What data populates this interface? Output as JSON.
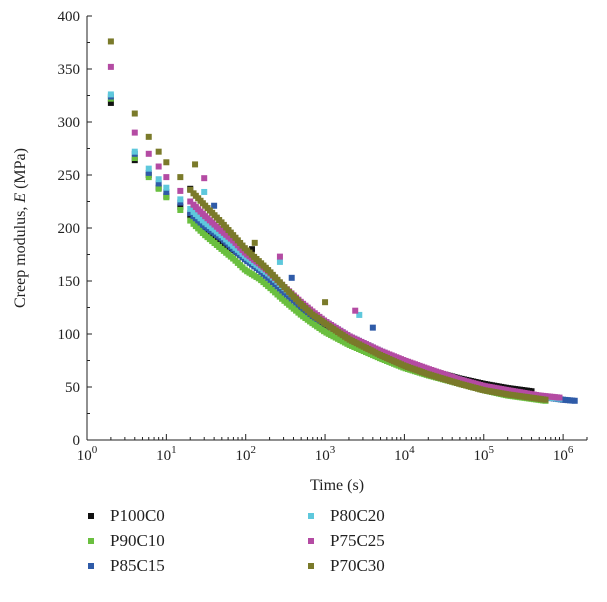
{
  "chart_data": {
    "type": "scatter",
    "xlabel": "Time (s)",
    "ylabel_main": "Creep modulus, ",
    "ylabel_italic": "E",
    "ylabel_unit": " (MPa)",
    "x_scale": "log",
    "xlim": [
      1,
      2000000
    ],
    "ylim": [
      0,
      400
    ],
    "x_ticks": [
      1,
      10,
      100,
      1000,
      10000,
      100000,
      1000000
    ],
    "x_tick_labels": [
      {
        "base": "10",
        "exp": "0"
      },
      {
        "base": "10",
        "exp": "1"
      },
      {
        "base": "10",
        "exp": "2"
      },
      {
        "base": "10",
        "exp": "3"
      },
      {
        "base": "10",
        "exp": "4"
      },
      {
        "base": "10",
        "exp": "5"
      },
      {
        "base": "10",
        "exp": "6"
      }
    ],
    "y_ticks": [
      0,
      50,
      100,
      150,
      200,
      250,
      300,
      350,
      400
    ],
    "grid": false,
    "legend_position": "bottom",
    "series": [
      {
        "name": "P100C0",
        "color": "#111111",
        "x_max": 400000,
        "x": [
          2,
          4,
          6,
          8,
          10,
          15,
          20,
          30,
          50,
          70,
          100,
          150,
          200,
          300,
          500,
          700,
          1000,
          2000,
          5000,
          10000,
          20000,
          50000,
          100000,
          200000,
          400000
        ],
        "y": [
          318,
          264,
          250,
          238,
          230,
          220,
          212,
          200,
          187,
          179,
          171,
          163,
          156,
          142,
          125,
          117,
          109,
          97,
          83,
          73,
          66,
          58,
          53,
          49,
          46
        ],
        "outliers": [
          [
            20,
            237
          ],
          [
            120,
            180
          ]
        ]
      },
      {
        "name": "P90C10",
        "color": "#6abf3f",
        "x_max": 600000,
        "x": [
          2,
          4,
          6,
          8,
          10,
          15,
          20,
          30,
          50,
          70,
          100,
          150,
          200,
          300,
          500,
          700,
          1000,
          2000,
          5000,
          10000,
          20000,
          50000,
          100000,
          200000,
          600000
        ],
        "y": [
          322,
          266,
          248,
          237,
          229,
          217,
          207,
          194,
          180,
          171,
          160,
          152,
          144,
          132,
          118,
          110,
          102,
          90,
          77,
          68,
          61,
          53,
          47,
          42,
          37
        ],
        "outliers": []
      },
      {
        "name": "P85C15",
        "color": "#2f5ba8",
        "x_max": 1400000,
        "x": [
          2,
          4,
          6,
          8,
          10,
          15,
          20,
          30,
          50,
          70,
          100,
          150,
          200,
          300,
          500,
          700,
          1000,
          2000,
          5000,
          10000,
          20000,
          50000,
          100000,
          200000,
          500000,
          1000000,
          1400000
        ],
        "y": [
          324,
          270,
          252,
          242,
          234,
          224,
          214,
          202,
          190,
          180,
          170,
          160,
          152,
          140,
          126,
          117,
          110,
          96,
          82,
          73,
          65,
          56,
          50,
          46,
          41,
          38,
          37
        ],
        "outliers": [
          [
            40,
            221
          ],
          [
            380,
            153
          ],
          [
            4000,
            106
          ]
        ]
      },
      {
        "name": "P80C20",
        "color": "#5ec8dc",
        "x_max": 900000,
        "x": [
          2,
          4,
          6,
          8,
          10,
          15,
          20,
          30,
          50,
          70,
          100,
          150,
          200,
          300,
          500,
          700,
          1000,
          2000,
          5000,
          10000,
          20000,
          50000,
          100000,
          200000,
          500000,
          900000
        ],
        "y": [
          326,
          272,
          256,
          246,
          238,
          227,
          218,
          206,
          193,
          183,
          173,
          163,
          156,
          144,
          129,
          120,
          112,
          98,
          84,
          74,
          66,
          57,
          50,
          46,
          41,
          39
        ],
        "outliers": [
          [
            30,
            234
          ],
          [
            270,
            168
          ],
          [
            2700,
            118
          ]
        ]
      },
      {
        "name": "P75C25",
        "color": "#b44ba3",
        "x_max": 900000,
        "x": [
          2,
          4,
          6,
          8,
          10,
          15,
          20,
          30,
          50,
          70,
          100,
          150,
          200,
          300,
          500,
          700,
          1000,
          2000,
          5000,
          10000,
          20000,
          50000,
          100000,
          200000,
          500000,
          900000
        ],
        "y": [
          352,
          290,
          270,
          258,
          248,
          235,
          225,
          212,
          197,
          188,
          176,
          166,
          158,
          145,
          130,
          121,
          112,
          98,
          84,
          75,
          67,
          57,
          51,
          47,
          42,
          40
        ],
        "outliers": [
          [
            30,
            247
          ],
          [
            270,
            173
          ],
          [
            2400,
            122
          ]
        ]
      },
      {
        "name": "P70C30",
        "color": "#7a7a2a",
        "x_max": 600000,
        "x": [
          2,
          4,
          6,
          8,
          10,
          15,
          20,
          30,
          50,
          70,
          100,
          150,
          200,
          300,
          500,
          700,
          1000,
          2000,
          5000,
          10000,
          20000,
          50000,
          100000,
          200000,
          600000
        ],
        "y": [
          376,
          308,
          286,
          272,
          262,
          248,
          236,
          222,
          205,
          193,
          180,
          168,
          159,
          145,
          128,
          118,
          110,
          95,
          80,
          70,
          62,
          53,
          47,
          43,
          38
        ],
        "outliers": [
          [
            23,
            260
          ],
          [
            130,
            186
          ],
          [
            1000,
            130
          ]
        ]
      }
    ]
  }
}
